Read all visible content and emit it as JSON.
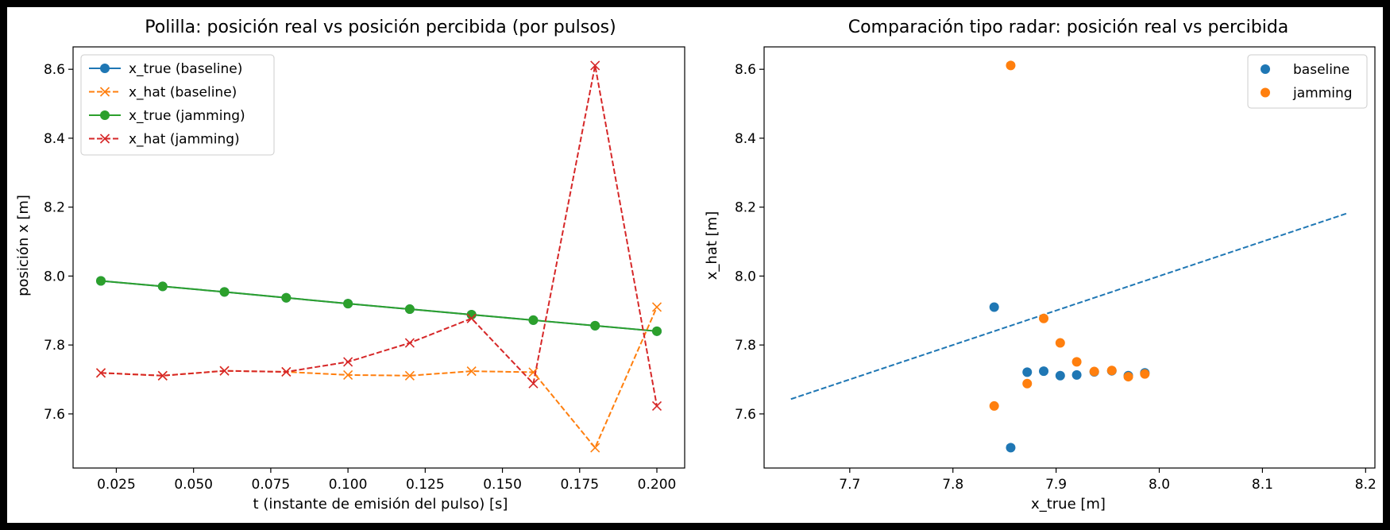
{
  "chart_data": [
    {
      "type": "line",
      "title": "Polilla: posición real vs posición percibida (por pulsos)",
      "xlabel": "t (instante de emisión del pulso) [s]",
      "ylabel": "posición x [m]",
      "xlim": [
        0.011,
        0.209
      ],
      "ylim": [
        7.443,
        8.665
      ],
      "xticks": [
        0.025,
        0.05,
        0.075,
        0.1,
        0.125,
        0.15,
        0.175,
        0.2
      ],
      "xtick_labels": [
        "0.025",
        "0.050",
        "0.075",
        "0.100",
        "0.125",
        "0.150",
        "0.175",
        "0.200"
      ],
      "yticks": [
        7.6,
        7.8,
        8.0,
        8.2,
        8.4,
        8.6
      ],
      "ytick_labels": [
        "7.6",
        "7.8",
        "8.0",
        "8.2",
        "8.4",
        "8.6"
      ],
      "grid": false,
      "legend_position": "top-left",
      "x": [
        0.02,
        0.04,
        0.06,
        0.08,
        0.1,
        0.12,
        0.14,
        0.16,
        0.18,
        0.2
      ],
      "series": [
        {
          "name": "x_true (baseline)",
          "color": "#1f77b4",
          "style": "solid",
          "marker": "circle",
          "values": [
            7.986,
            7.97,
            7.954,
            7.937,
            7.92,
            7.904,
            7.888,
            7.872,
            7.856,
            7.84
          ]
        },
        {
          "name": "x_hat (baseline)",
          "color": "#ff7f0e",
          "style": "dashed",
          "marker": "x",
          "values": [
            7.719,
            7.711,
            7.725,
            7.722,
            7.713,
            7.711,
            7.724,
            7.721,
            7.502,
            7.91
          ]
        },
        {
          "name": "x_true (jamming)",
          "color": "#2ca02c",
          "style": "solid",
          "marker": "circle",
          "values": [
            7.986,
            7.97,
            7.954,
            7.937,
            7.92,
            7.904,
            7.888,
            7.872,
            7.856,
            7.84
          ]
        },
        {
          "name": "x_hat (jamming)",
          "color": "#d62728",
          "style": "dashed",
          "marker": "x",
          "values": [
            7.719,
            7.711,
            7.725,
            7.722,
            7.751,
            7.806,
            7.877,
            7.688,
            8.611,
            7.623
          ]
        }
      ]
    },
    {
      "type": "scatter",
      "title": "Comparación tipo radar: posición real vs percibida",
      "xlabel": "x_true [m]",
      "ylabel": "x_hat [m]",
      "xlim": [
        7.617,
        8.209
      ],
      "ylim": [
        7.443,
        8.665
      ],
      "xticks": [
        7.7,
        7.8,
        7.9,
        8.0,
        8.1,
        8.2
      ],
      "xtick_labels": [
        "7.7",
        "7.8",
        "7.9",
        "8.0",
        "8.1",
        "8.2"
      ],
      "yticks": [
        7.6,
        7.8,
        8.0,
        8.2,
        8.4,
        8.6
      ],
      "ytick_labels": [
        "7.6",
        "7.8",
        "8.0",
        "8.2",
        "8.4",
        "8.6"
      ],
      "grid": false,
      "legend_position": "top-right",
      "reference_line": {
        "x": [
          7.643,
          8.183
        ],
        "y": [
          7.643,
          8.183
        ],
        "color": "#1f77b4",
        "style": "dashed"
      },
      "series": [
        {
          "name": "baseline",
          "color": "#1f77b4",
          "x": [
            7.986,
            7.97,
            7.954,
            7.937,
            7.92,
            7.904,
            7.888,
            7.872,
            7.856,
            7.84
          ],
          "y": [
            7.719,
            7.711,
            7.725,
            7.722,
            7.713,
            7.711,
            7.724,
            7.721,
            7.502,
            7.91
          ]
        },
        {
          "name": "jamming",
          "color": "#ff7f0e",
          "x": [
            7.986,
            7.97,
            7.954,
            7.937,
            7.92,
            7.904,
            7.888,
            7.872,
            7.856,
            7.84
          ],
          "y": [
            7.716,
            7.708,
            7.726,
            7.723,
            7.751,
            7.806,
            7.877,
            7.688,
            8.611,
            7.623
          ]
        }
      ]
    }
  ]
}
